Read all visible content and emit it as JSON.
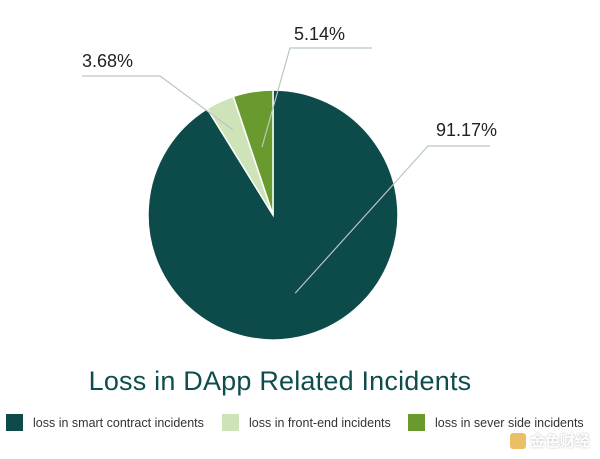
{
  "chart_data": {
    "type": "pie",
    "title": "Loss in DApp Related Incidents",
    "categories": [
      "loss in smart contract incidents",
      "loss in front-end incidents",
      "loss in sever side incidents"
    ],
    "values": [
      91.17,
      3.68,
      5.14
    ],
    "labels": [
      "91.17%",
      "3.68%",
      "5.14%"
    ],
    "colors": [
      "#0d4a4a",
      "#cfe3b8",
      "#6a9a2e"
    ],
    "start_angle_deg": 0,
    "direction": "clockwise",
    "legend_position": "bottom"
  },
  "watermark": {
    "text": "金色财经"
  }
}
